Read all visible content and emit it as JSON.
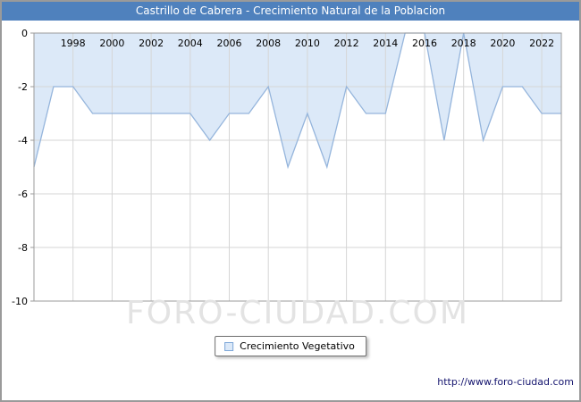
{
  "window": {
    "title": "Castrillo de Cabrera - Crecimiento Natural de la Poblacion"
  },
  "watermark": "FORO-CIUDAD.COM",
  "legend": {
    "label": "Crecimiento Vegetativo"
  },
  "footer": {
    "url": "http://www.foro-ciudad.com"
  },
  "colors": {
    "titlebar": "#4f81bd",
    "area_fill": "#dce9f8",
    "area_stroke": "#95b5dc",
    "grid": "#d6d6d6",
    "plot_border": "#9b9b9b",
    "tick_text": "#000000"
  },
  "chart_data": {
    "type": "area",
    "title": "Castrillo de Cabrera - Crecimiento Natural de la Poblacion",
    "xlabel": "",
    "ylabel": "",
    "xlim": [
      1996,
      2023
    ],
    "ylim": [
      -10,
      0
    ],
    "x_ticks": [
      1998,
      2000,
      2002,
      2004,
      2006,
      2008,
      2010,
      2012,
      2014,
      2016,
      2018,
      2020,
      2022
    ],
    "y_ticks": [
      0,
      -2,
      -4,
      -6,
      -8,
      -10
    ],
    "grid": true,
    "legend_position": "bottom",
    "series": [
      {
        "name": "Crecimiento Vegetativo",
        "x": [
          1996,
          1997,
          1998,
          1999,
          2000,
          2001,
          2002,
          2003,
          2004,
          2005,
          2006,
          2007,
          2008,
          2009,
          2010,
          2011,
          2012,
          2013,
          2014,
          2015,
          2016,
          2017,
          2018,
          2019,
          2020,
          2021,
          2022,
          2023
        ],
        "values": [
          -5,
          -2,
          -2,
          -3,
          -3,
          -3,
          -3,
          -3,
          -3,
          -4,
          -3,
          -3,
          -2,
          -5,
          -3,
          -5,
          -2,
          -3,
          -3,
          0,
          0,
          -4,
          0,
          -4,
          -2,
          -2,
          -3,
          -3
        ]
      }
    ]
  }
}
